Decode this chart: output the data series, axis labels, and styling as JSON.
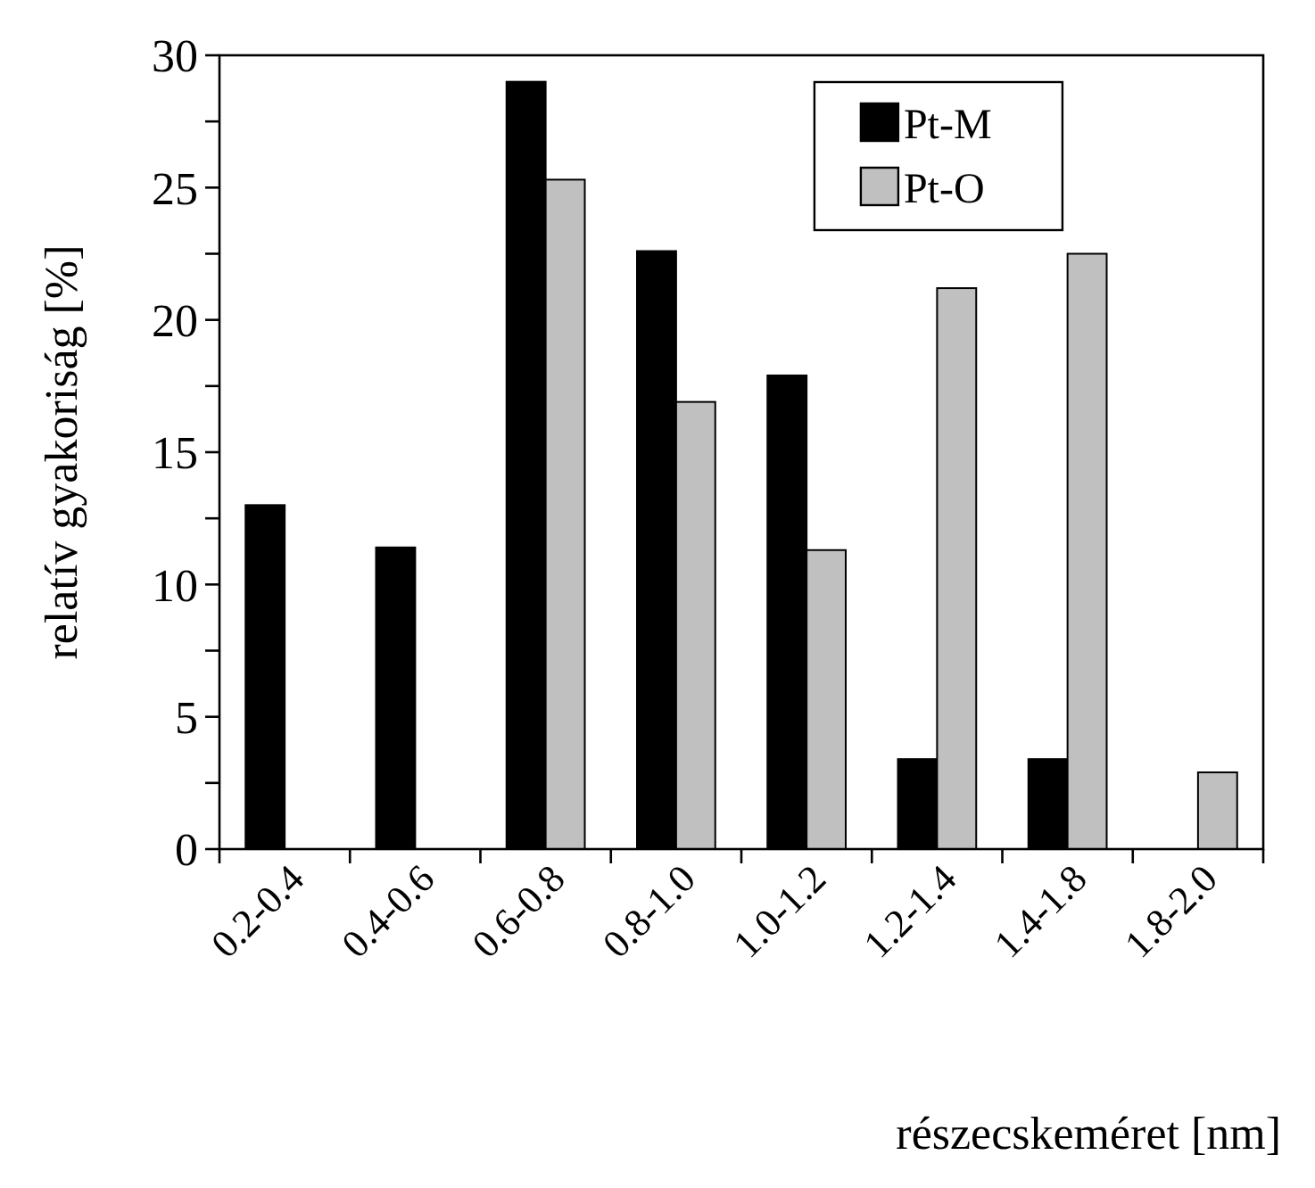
{
  "chart_data": {
    "type": "bar",
    "xlabel": "részecskeméret [nm]",
    "ylabel": "relatív gyakoriság [%]",
    "categories": [
      "0.2-0.4",
      "0.4-0.6",
      "0.6-0.8",
      "0.8-1.0",
      "1.0-1.2",
      "1.2-1.4",
      "1.4-1.8",
      "1.8-2.0"
    ],
    "series": [
      {
        "name": "Pt-M",
        "color": "#000000",
        "values": [
          13,
          11.4,
          29,
          22.6,
          17.9,
          3.4,
          3.4,
          null
        ]
      },
      {
        "name": "Pt-O",
        "color": "#c0c0c0",
        "values": [
          null,
          null,
          25.3,
          16.9,
          11.3,
          21.2,
          22.5,
          2.9
        ]
      }
    ],
    "ylim": [
      0,
      30
    ],
    "yticks": [
      0,
      {
        "value": 2.5,
        "label": null
      },
      5,
      {
        "value": 7.5,
        "label": null
      },
      10,
      {
        "value": 12.5,
        "label": null
      },
      15,
      {
        "value": 17.5,
        "label": null
      },
      20,
      {
        "value": 22.5,
        "label": null
      },
      25,
      {
        "value": 27.5,
        "label": null
      },
      30
    ],
    "grid": false,
    "legend": "top right"
  }
}
